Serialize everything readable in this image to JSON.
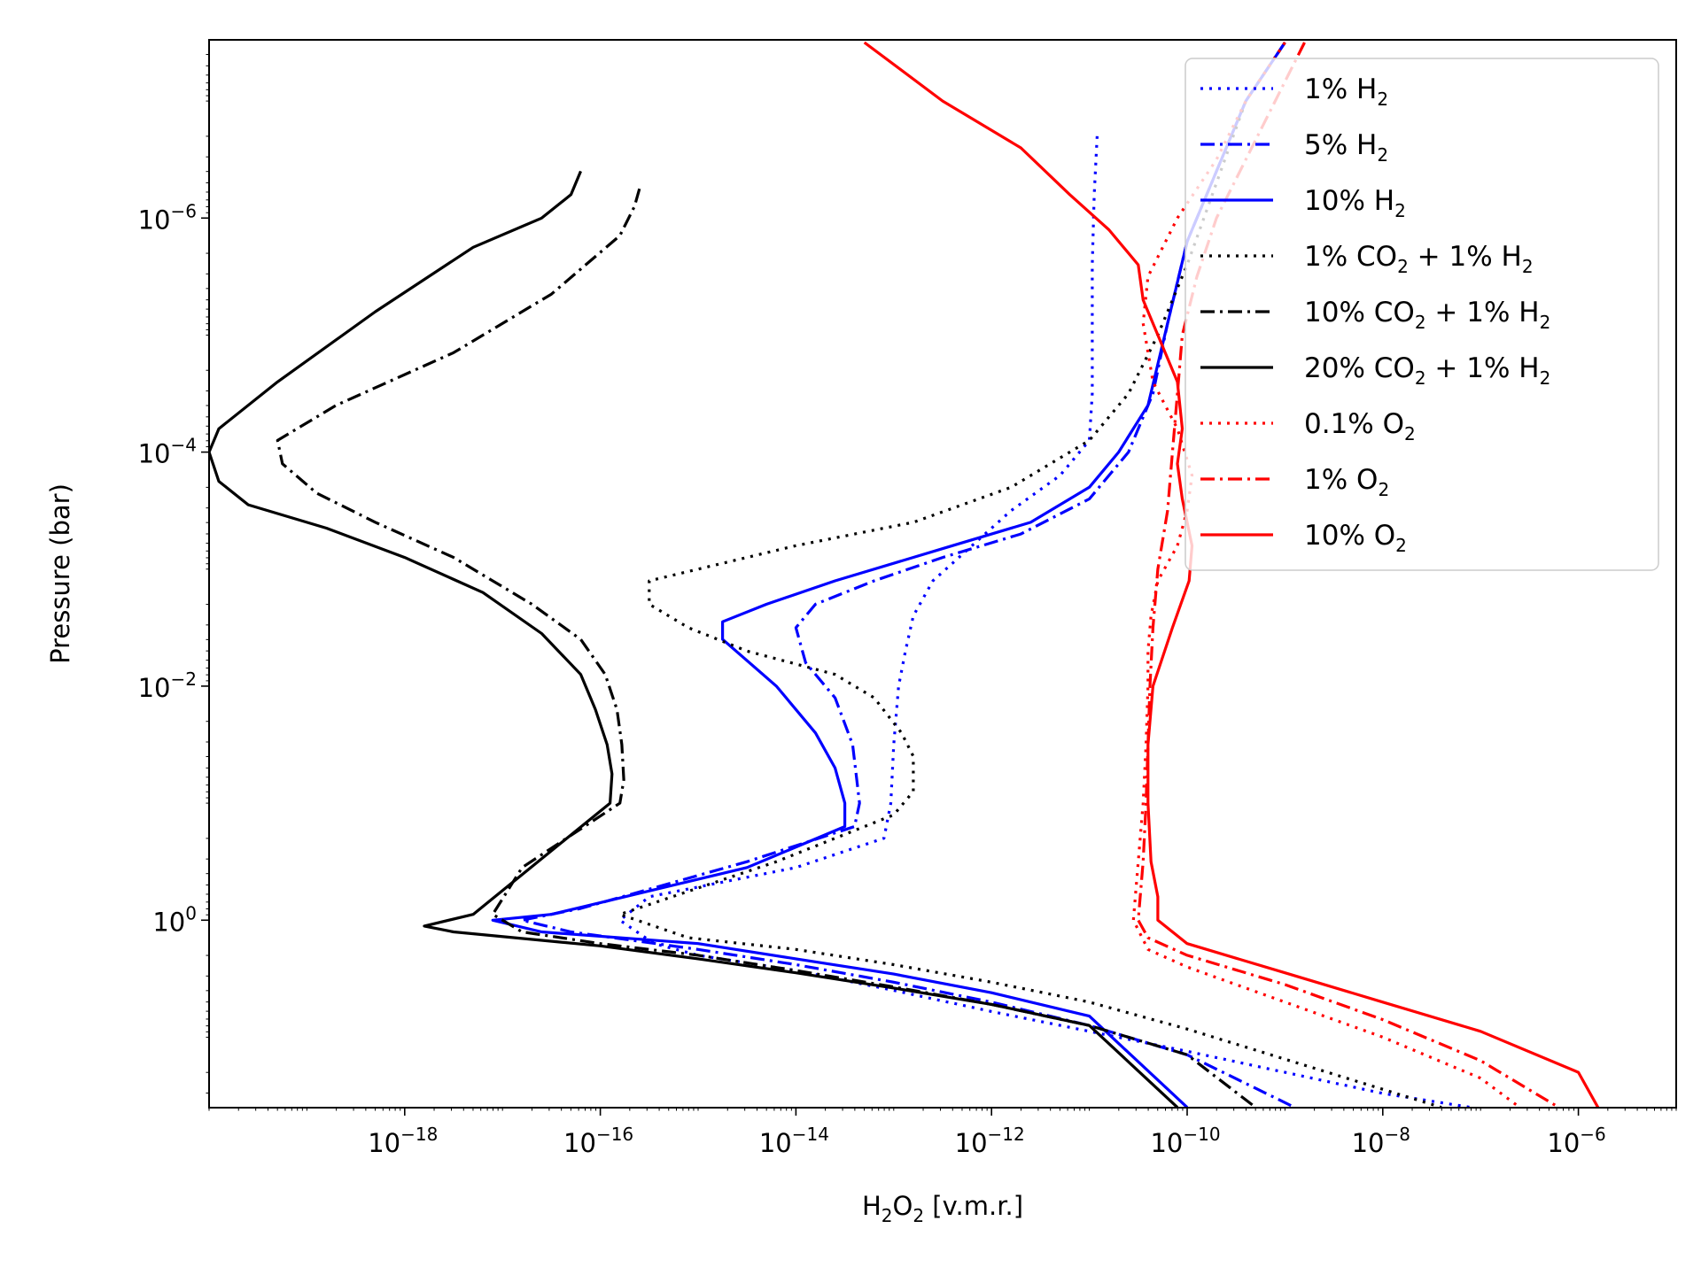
{
  "chart_data": {
    "type": "line",
    "xlabel": "H₂O₂ [v.m.r.]",
    "ylabel": "Pressure (bar)",
    "xscale": "log",
    "yscale": "log",
    "y_inverted": true,
    "xlim": [
      1e-20,
      1e-05
    ],
    "ylim": [
      40,
      3e-08
    ],
    "xticks": [
      {
        "value": 1e-18,
        "base": "10",
        "exp": "−18"
      },
      {
        "value": 1e-16,
        "base": "10",
        "exp": "−16"
      },
      {
        "value": 1e-14,
        "base": "10",
        "exp": "−14"
      },
      {
        "value": 1e-12,
        "base": "10",
        "exp": "−12"
      },
      {
        "value": 1e-10,
        "base": "10",
        "exp": "−10"
      },
      {
        "value": 1e-08,
        "base": "10",
        "exp": "−8"
      },
      {
        "value": 1e-06,
        "base": "10",
        "exp": "−6"
      }
    ],
    "yticks": [
      {
        "value": 1e-06,
        "base": "10",
        "exp": "−6"
      },
      {
        "value": 0.0001,
        "base": "10",
        "exp": "−4"
      },
      {
        "value": 0.01,
        "base": "10",
        "exp": "−2"
      },
      {
        "value": 1,
        "base": "10",
        "exp": "0"
      }
    ],
    "legend_position": "top-right",
    "series": [
      {
        "name": "1% H2",
        "label_parts": [
          "1% H",
          "2",
          ""
        ],
        "color": "#0000ff",
        "style": "dotted",
        "log_x": [
          -10.92,
          -10.95,
          -10.97,
          -10.97,
          -10.97,
          -11.0,
          -11.3,
          -11.8,
          -12.2,
          -12.6,
          -12.8,
          -12.88,
          -12.95,
          -13.0,
          -13.03,
          -13.1,
          -14.0,
          -15.5,
          -15.8,
          -15.45,
          -15.0,
          -14.0,
          -13.0,
          -12.0,
          -11.0,
          -10.0,
          -9.0,
          -8.0,
          -7.1
        ],
        "log_p": [
          -6.7,
          -6.2,
          -5.6,
          -5.0,
          -4.5,
          -4.1,
          -3.8,
          -3.5,
          -3.2,
          -2.9,
          -2.6,
          -2.3,
          -2.0,
          -1.5,
          -1.0,
          -0.7,
          -0.45,
          -0.2,
          0.0,
          0.2,
          0.3,
          0.43,
          0.6,
          0.78,
          0.95,
          1.12,
          1.3,
          1.48,
          1.6
        ]
      },
      {
        "name": "5% H2",
        "label_parts": [
          "5% H",
          "2",
          ""
        ],
        "color": "#0000ff",
        "style": "dashdot",
        "log_x": [
          -9.0,
          -9.4,
          -9.7,
          -10.0,
          -10.2,
          -10.35,
          -10.6,
          -11.0,
          -11.7,
          -12.5,
          -13.2,
          -13.8,
          -14.0,
          -13.9,
          -13.6,
          -13.42,
          -13.35,
          -13.4,
          -14.5,
          -16.2,
          -16.8,
          -16.3,
          -15.0,
          -14.0,
          -13.0,
          -12.0,
          -11.0,
          -10.0,
          -8.9
        ],
        "log_p": [
          -7.5,
          -7.0,
          -6.4,
          -5.8,
          -5.1,
          -4.5,
          -4.0,
          -3.6,
          -3.3,
          -3.1,
          -2.9,
          -2.7,
          -2.5,
          -2.2,
          -1.9,
          -1.5,
          -1.0,
          -0.8,
          -0.5,
          -0.1,
          0.0,
          0.1,
          0.25,
          0.38,
          0.53,
          0.7,
          0.9,
          1.15,
          1.6
        ]
      },
      {
        "name": "10% H2",
        "label_parts": [
          "10% H",
          "2",
          ""
        ],
        "color": "#0000ff",
        "style": "solid",
        "log_x": [
          -9.0,
          -9.4,
          -9.7,
          -10.0,
          -10.2,
          -10.4,
          -10.7,
          -11.0,
          -11.6,
          -12.4,
          -13.6,
          -14.3,
          -14.75,
          -14.75,
          -14.2,
          -13.8,
          -13.6,
          -13.5,
          -13.5,
          -14.5,
          -16.5,
          -17.1,
          -16.6,
          -15.0,
          -14.0,
          -13.0,
          -12.0,
          -11.0,
          -10.0
        ],
        "log_p": [
          -7.5,
          -7.0,
          -6.4,
          -5.8,
          -5.1,
          -4.4,
          -4.0,
          -3.7,
          -3.4,
          -3.2,
          -2.9,
          -2.7,
          -2.55,
          -2.4,
          -2.0,
          -1.6,
          -1.3,
          -1.0,
          -0.8,
          -0.45,
          -0.05,
          0.0,
          0.1,
          0.2,
          0.33,
          0.46,
          0.62,
          0.82,
          1.6
        ]
      },
      {
        "name": "1% CO2 + 1% H2",
        "label_parts": [
          "1% CO",
          "2",
          " + 1% H",
          "2"
        ],
        "color": "#000000",
        "style": "dotted",
        "log_x": [
          -9.0,
          -9.4,
          -9.7,
          -10.0,
          -10.3,
          -10.6,
          -11.0,
          -11.8,
          -12.8,
          -14.0,
          -15.0,
          -15.5,
          -15.5,
          -15.1,
          -14.5,
          -13.6,
          -13.2,
          -12.92,
          -12.8,
          -12.8,
          -13.0,
          -14.2,
          -15.8,
          -15.1,
          -14.0,
          -13.0,
          -12.0,
          -11.0,
          -10.0,
          -7.4
        ],
        "log_p": [
          -7.5,
          -7.0,
          -6.3,
          -5.6,
          -5.0,
          -4.5,
          -4.1,
          -3.7,
          -3.4,
          -3.2,
          -3.0,
          -2.9,
          -2.7,
          -2.5,
          -2.3,
          -2.1,
          -1.9,
          -1.6,
          -1.4,
          -1.1,
          -0.9,
          -0.5,
          -0.05,
          0.15,
          0.25,
          0.38,
          0.53,
          0.7,
          0.93,
          1.6
        ]
      },
      {
        "name": "10% CO2 + 1% H2",
        "label_parts": [
          "10% CO",
          "2",
          " + 1% H",
          "2"
        ],
        "color": "#000000",
        "style": "dashdot",
        "log_x": [
          -15.6,
          -15.65,
          -15.8,
          -16.5,
          -17.5,
          -18.7,
          -19.3,
          -19.25,
          -18.9,
          -18.3,
          -17.5,
          -16.7,
          -16.2,
          -15.95,
          -15.83,
          -15.78,
          -15.76,
          -15.8,
          -16.8,
          -17.1,
          -16.8,
          -16.0,
          -15.0,
          -14.0,
          -13.0,
          -12.0,
          -11.0,
          -10.0,
          -9.3
        ],
        "log_p": [
          -6.25,
          -6.1,
          -5.85,
          -5.35,
          -4.85,
          -4.4,
          -4.1,
          -3.9,
          -3.65,
          -3.4,
          -3.1,
          -2.7,
          -2.4,
          -2.1,
          -1.8,
          -1.5,
          -1.2,
          -1.0,
          -0.45,
          -0.05,
          0.1,
          0.2,
          0.3,
          0.43,
          0.57,
          0.72,
          0.9,
          1.15,
          1.6
        ]
      },
      {
        "name": "20% CO2 + 1% H2",
        "label_parts": [
          "20% CO",
          "2",
          " + 1% H",
          "2"
        ],
        "color": "#000000",
        "style": "solid",
        "log_x": [
          -16.2,
          -16.3,
          -16.6,
          -17.3,
          -18.3,
          -19.3,
          -19.9,
          -20.0,
          -19.9,
          -19.6,
          -18.8,
          -18.0,
          -17.2,
          -16.6,
          -16.2,
          -16.05,
          -15.93,
          -15.88,
          -15.9,
          -17.3,
          -17.8,
          -17.5,
          -16.0,
          -15.0,
          -14.0,
          -13.0,
          -12.0,
          -11.0,
          -10.1
        ],
        "log_p": [
          -6.4,
          -6.2,
          -6.0,
          -5.75,
          -5.2,
          -4.6,
          -4.2,
          -4.0,
          -3.75,
          -3.55,
          -3.35,
          -3.1,
          -2.8,
          -2.45,
          -2.1,
          -1.8,
          -1.5,
          -1.25,
          -1.0,
          -0.05,
          0.05,
          0.1,
          0.22,
          0.33,
          0.45,
          0.58,
          0.72,
          0.9,
          1.6
        ]
      },
      {
        "name": "0.1% O2",
        "label_parts": [
          "0.1% O",
          "2",
          ""
        ],
        "color": "#ff0000",
        "style": "dotted",
        "log_x": [
          -9.0,
          -9.4,
          -9.7,
          -10.1,
          -10.4,
          -10.45,
          -10.35,
          -10.1,
          -9.95,
          -10.0,
          -10.1,
          -10.3,
          -10.37,
          -10.4,
          -10.4,
          -10.42,
          -10.45,
          -10.5,
          -10.55,
          -10.4,
          -10.0,
          -9.0,
          -8.0,
          -7.0,
          -6.6
        ],
        "log_p": [
          -7.5,
          -7.0,
          -6.5,
          -6.0,
          -5.5,
          -5.1,
          -4.6,
          -4.2,
          -3.8,
          -3.5,
          -3.2,
          -2.9,
          -2.6,
          -2.3,
          -2.0,
          -1.5,
          -1.0,
          -0.5,
          0.0,
          0.25,
          0.4,
          0.7,
          1.0,
          1.35,
          1.6
        ]
      },
      {
        "name": "1% O2",
        "label_parts": [
          "1% O",
          "2",
          ""
        ],
        "color": "#ff0000",
        "style": "dashdot",
        "log_x": [
          -8.8,
          -9.1,
          -9.4,
          -9.7,
          -9.9,
          -10.05,
          -10.1,
          -10.15,
          -10.2,
          -10.3,
          -10.35,
          -10.38,
          -10.4,
          -10.42,
          -10.45,
          -10.5,
          -10.4,
          -10.0,
          -9.0,
          -8.0,
          -7.0,
          -6.2
        ],
        "log_p": [
          -7.5,
          -7.0,
          -6.5,
          -6.0,
          -5.5,
          -5.0,
          -4.5,
          -4.0,
          -3.5,
          -3.0,
          -2.5,
          -2.0,
          -1.5,
          -1.0,
          -0.5,
          0.0,
          0.15,
          0.3,
          0.55,
          0.85,
          1.2,
          1.6
        ]
      },
      {
        "name": "10% O2",
        "label_parts": [
          "10% O",
          "2",
          ""
        ],
        "color": "#ff0000",
        "style": "solid",
        "log_x": [
          -13.3,
          -12.5,
          -11.7,
          -11.2,
          -10.8,
          -10.5,
          -10.45,
          -10.3,
          -10.1,
          -10.05,
          -10.1,
          -10.05,
          -9.95,
          -9.98,
          -10.15,
          -10.35,
          -10.4,
          -10.4,
          -10.37,
          -10.3,
          -10.3,
          -10.0,
          -9.0,
          -8.0,
          -7.0,
          -6.0,
          -5.8
        ],
        "log_p": [
          -7.5,
          -7.0,
          -6.6,
          -6.2,
          -5.9,
          -5.6,
          -5.3,
          -5.0,
          -4.6,
          -4.2,
          -3.9,
          -3.6,
          -3.2,
          -2.9,
          -2.5,
          -2.0,
          -1.5,
          -1.0,
          -0.5,
          -0.2,
          0.0,
          0.2,
          0.45,
          0.7,
          0.95,
          1.3,
          1.6
        ]
      }
    ]
  }
}
